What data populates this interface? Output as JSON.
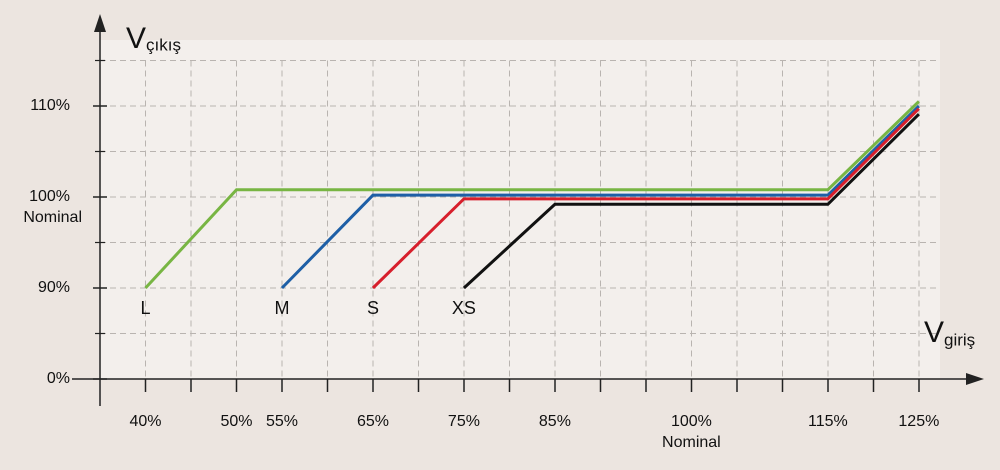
{
  "chart_data": {
    "type": "line",
    "y_axis_symbol": "V",
    "y_axis_subscript": "çıkış",
    "x_axis_symbol": "V",
    "x_axis_subscript": "giriş",
    "xlim": [
      35,
      131.5
    ],
    "xticks": [
      {
        "value": 40,
        "label": "40%"
      },
      {
        "value": 50,
        "label": "50%"
      },
      {
        "value": 55,
        "label": "55%"
      },
      {
        "value": 65,
        "label": "65%"
      },
      {
        "value": 75,
        "label": "75%"
      },
      {
        "value": 85,
        "label": "85%"
      },
      {
        "value": 100,
        "label": "100%",
        "sublabel": "Nominal"
      },
      {
        "value": 115,
        "label": "115%"
      },
      {
        "value": 125,
        "label": "125%"
      }
    ],
    "yticks": [
      {
        "value": 0,
        "label": "0%"
      },
      {
        "value": 90,
        "label": "90%"
      },
      {
        "value": 100,
        "label": "100%",
        "sublabel": "Nominal"
      },
      {
        "value": 110,
        "label": "110%"
      }
    ],
    "grid": true,
    "series": [
      {
        "name": "L",
        "color": "#78b543",
        "x": [
          40,
          50,
          115,
          125
        ],
        "values": [
          90,
          100.8,
          100.8,
          110.5
        ]
      },
      {
        "name": "M",
        "color": "#1e5fa6",
        "x": [
          55,
          65,
          115,
          125
        ],
        "values": [
          90,
          100.2,
          100.2,
          110
        ]
      },
      {
        "name": "S",
        "color": "#d71f2c",
        "x": [
          65,
          75,
          115,
          125
        ],
        "values": [
          90,
          99.8,
          99.8,
          109.7
        ]
      },
      {
        "name": "XS",
        "color": "#111111",
        "x": [
          75,
          85,
          115,
          125
        ],
        "values": [
          90,
          99.2,
          99.2,
          109.1
        ]
      }
    ]
  }
}
